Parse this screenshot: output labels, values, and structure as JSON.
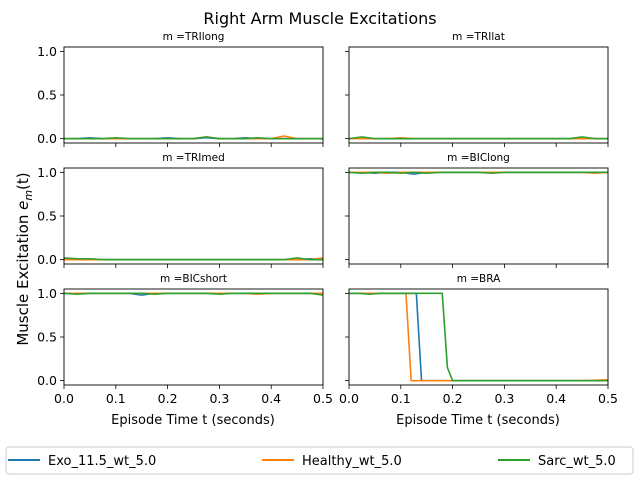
{
  "figure": {
    "title": "Right Arm Muscle Excitations",
    "ylabel_prefix": "Muscle Excitation ",
    "ylabel_math_e": "e",
    "ylabel_math_sub": "m",
    "ylabel_math_arg": "(t)",
    "xlabel": "Episode Time t (seconds)"
  },
  "legend": {
    "entries": [
      {
        "label": "Exo_11.5_wt_5.0",
        "color": "#1f77b4"
      },
      {
        "label": "Healthy_wt_5.0",
        "color": "#ff7f0e"
      },
      {
        "label": "Sarc_wt_5.0",
        "color": "#2ca02c"
      }
    ]
  },
  "chart_data": [
    {
      "type": "line",
      "title": "m =TRIlong",
      "x": [
        0.0,
        0.025,
        0.05,
        0.075,
        0.1,
        0.125,
        0.15,
        0.175,
        0.2,
        0.225,
        0.25,
        0.275,
        0.3,
        0.325,
        0.35,
        0.375,
        0.4,
        0.425,
        0.45,
        0.475,
        0.5
      ],
      "series": [
        {
          "name": "Exo_11.5_wt_5.0",
          "values": [
            0.0,
            0.0,
            0.01,
            0.0,
            0.0,
            0.0,
            0.0,
            0.0,
            0.01,
            0.0,
            0.0,
            0.01,
            0.0,
            0.0,
            0.01,
            0.0,
            0.0,
            0.0,
            0.0,
            0.0,
            0.0
          ]
        },
        {
          "name": "Healthy_wt_5.0",
          "values": [
            0.0,
            0.0,
            0.0,
            0.0,
            0.0,
            0.0,
            0.0,
            0.0,
            0.0,
            0.0,
            0.0,
            0.02,
            0.0,
            0.0,
            0.0,
            0.0,
            0.0,
            0.03,
            0.0,
            0.0,
            0.0
          ]
        },
        {
          "name": "Sarc_wt_5.0",
          "values": [
            0.0,
            0.0,
            0.0,
            0.0,
            0.01,
            0.0,
            0.0,
            0.0,
            0.0,
            0.0,
            0.0,
            0.02,
            0.0,
            0.0,
            0.0,
            0.01,
            0.0,
            0.0,
            0.0,
            0.0,
            0.0
          ]
        }
      ],
      "xlim": [
        0.0,
        0.5
      ],
      "ylim": [
        -0.05,
        1.05
      ],
      "xticks": [
        0.0,
        0.1,
        0.2,
        0.3,
        0.4,
        0.5
      ],
      "yticks": [
        0.0,
        0.5,
        1.0
      ]
    },
    {
      "type": "line",
      "title": "m =TRIlat",
      "x": [
        0.0,
        0.025,
        0.05,
        0.075,
        0.1,
        0.125,
        0.15,
        0.175,
        0.2,
        0.225,
        0.25,
        0.275,
        0.3,
        0.325,
        0.35,
        0.375,
        0.4,
        0.425,
        0.45,
        0.475,
        0.5
      ],
      "series": [
        {
          "name": "Exo_11.5_wt_5.0",
          "values": [
            0.0,
            0.0,
            0.0,
            0.0,
            0.0,
            0.0,
            0.0,
            0.0,
            0.0,
            0.0,
            0.0,
            0.0,
            0.0,
            0.0,
            0.0,
            0.0,
            0.0,
            0.0,
            0.0,
            0.0,
            0.0
          ]
        },
        {
          "name": "Healthy_wt_5.0",
          "values": [
            0.0,
            0.0,
            0.0,
            0.0,
            0.01,
            0.0,
            0.0,
            0.0,
            0.0,
            0.0,
            0.0,
            0.0,
            0.0,
            0.0,
            0.0,
            0.0,
            0.0,
            0.0,
            0.0,
            0.0,
            0.0
          ]
        },
        {
          "name": "Sarc_wt_5.0",
          "values": [
            0.0,
            0.02,
            0.0,
            0.0,
            0.0,
            0.0,
            0.0,
            0.0,
            0.0,
            0.0,
            0.0,
            0.0,
            0.0,
            0.0,
            0.0,
            0.0,
            0.0,
            0.0,
            0.02,
            0.0,
            0.0
          ]
        }
      ],
      "xlim": [
        0.0,
        0.5
      ],
      "ylim": [
        -0.05,
        1.05
      ],
      "xticks": [
        0.0,
        0.1,
        0.2,
        0.3,
        0.4,
        0.5
      ],
      "yticks": [
        0.0,
        0.5,
        1.0
      ]
    },
    {
      "type": "line",
      "title": "m =TRImed",
      "x": [
        0.0,
        0.025,
        0.05,
        0.075,
        0.1,
        0.125,
        0.15,
        0.175,
        0.2,
        0.225,
        0.25,
        0.275,
        0.3,
        0.325,
        0.35,
        0.375,
        0.4,
        0.425,
        0.45,
        0.475,
        0.5
      ],
      "series": [
        {
          "name": "Exo_11.5_wt_5.0",
          "values": [
            0.01,
            0.0,
            0.0,
            0.0,
            0.0,
            0.0,
            0.0,
            0.0,
            0.0,
            0.0,
            0.0,
            0.0,
            0.0,
            0.0,
            0.0,
            0.0,
            0.0,
            0.0,
            0.0,
            0.01,
            0.0
          ]
        },
        {
          "name": "Healthy_wt_5.0",
          "values": [
            0.0,
            0.0,
            0.0,
            0.0,
            0.0,
            0.0,
            0.0,
            0.0,
            0.0,
            0.0,
            0.0,
            0.0,
            0.0,
            0.0,
            0.0,
            0.0,
            0.0,
            0.0,
            0.0,
            0.0,
            0.02
          ]
        },
        {
          "name": "Sarc_wt_5.0",
          "values": [
            0.02,
            0.01,
            0.01,
            0.0,
            0.0,
            0.0,
            0.0,
            0.0,
            0.0,
            0.0,
            0.0,
            0.0,
            0.0,
            0.0,
            0.0,
            0.0,
            0.0,
            0.0,
            0.02,
            0.0,
            0.0
          ]
        }
      ],
      "xlim": [
        0.0,
        0.5
      ],
      "ylim": [
        -0.05,
        1.05
      ],
      "xticks": [
        0.0,
        0.1,
        0.2,
        0.3,
        0.4,
        0.5
      ],
      "yticks": [
        0.0,
        0.5,
        1.0
      ]
    },
    {
      "type": "line",
      "title": "m =BIClong",
      "x": [
        0.0,
        0.025,
        0.05,
        0.075,
        0.1,
        0.125,
        0.15,
        0.175,
        0.2,
        0.225,
        0.25,
        0.275,
        0.3,
        0.325,
        0.35,
        0.375,
        0.4,
        0.425,
        0.45,
        0.475,
        0.5
      ],
      "series": [
        {
          "name": "Exo_11.5_wt_5.0",
          "values": [
            1.0,
            1.0,
            0.99,
            1.0,
            1.0,
            0.98,
            1.0,
            1.0,
            1.0,
            1.0,
            1.0,
            1.0,
            1.0,
            1.0,
            1.0,
            1.0,
            1.0,
            1.0,
            1.0,
            1.0,
            1.0
          ]
        },
        {
          "name": "Healthy_wt_5.0",
          "values": [
            1.0,
            1.0,
            1.0,
            0.99,
            1.0,
            1.0,
            1.0,
            1.0,
            1.0,
            1.0,
            1.0,
            1.0,
            1.0,
            1.0,
            1.0,
            1.0,
            1.0,
            1.0,
            1.0,
            0.99,
            1.0
          ]
        },
        {
          "name": "Sarc_wt_5.0",
          "values": [
            1.0,
            0.99,
            1.0,
            1.0,
            0.99,
            1.0,
            0.99,
            1.0,
            1.0,
            1.0,
            1.0,
            0.99,
            1.0,
            1.0,
            1.0,
            1.0,
            1.0,
            1.0,
            1.0,
            1.0,
            1.0
          ]
        }
      ],
      "xlim": [
        0.0,
        0.5
      ],
      "ylim": [
        -0.05,
        1.05
      ],
      "xticks": [
        0.0,
        0.1,
        0.2,
        0.3,
        0.4,
        0.5
      ],
      "yticks": [
        0.0,
        0.5,
        1.0
      ]
    },
    {
      "type": "line",
      "title": "m =BICshort",
      "x": [
        0.0,
        0.025,
        0.05,
        0.075,
        0.1,
        0.125,
        0.15,
        0.175,
        0.2,
        0.225,
        0.25,
        0.275,
        0.3,
        0.325,
        0.35,
        0.375,
        0.4,
        0.425,
        0.45,
        0.475,
        0.5
      ],
      "series": [
        {
          "name": "Exo_11.5_wt_5.0",
          "values": [
            1.0,
            1.0,
            1.0,
            1.0,
            1.0,
            1.0,
            0.98,
            1.0,
            1.0,
            1.0,
            1.0,
            1.0,
            1.0,
            1.0,
            1.0,
            1.0,
            1.0,
            1.0,
            1.0,
            1.0,
            1.0
          ]
        },
        {
          "name": "Healthy_wt_5.0",
          "values": [
            1.0,
            1.0,
            1.0,
            1.0,
            1.0,
            1.0,
            1.0,
            1.0,
            1.0,
            1.0,
            1.0,
            1.0,
            1.0,
            1.0,
            1.0,
            0.99,
            1.0,
            1.0,
            1.0,
            1.0,
            1.0
          ]
        },
        {
          "name": "Sarc_wt_5.0",
          "values": [
            1.0,
            0.99,
            1.0,
            1.0,
            1.0,
            1.0,
            1.0,
            0.99,
            1.0,
            1.0,
            1.0,
            1.0,
            0.99,
            1.0,
            1.0,
            1.0,
            1.0,
            1.0,
            1.0,
            1.0,
            0.98
          ]
        }
      ],
      "xlim": [
        0.0,
        0.5
      ],
      "ylim": [
        -0.05,
        1.05
      ],
      "xticks": [
        0.0,
        0.1,
        0.2,
        0.3,
        0.4,
        0.5
      ],
      "yticks": [
        0.0,
        0.5,
        1.0
      ]
    },
    {
      "type": "line",
      "title": "m =BRA",
      "x": [
        0.0,
        0.02,
        0.04,
        0.06,
        0.08,
        0.1,
        0.11,
        0.12,
        0.13,
        0.14,
        0.16,
        0.17,
        0.18,
        0.19,
        0.2,
        0.25,
        0.3,
        0.35,
        0.4,
        0.45,
        0.5
      ],
      "series": [
        {
          "name": "Exo_11.5_wt_5.0",
          "values": [
            1.0,
            1.0,
            1.0,
            1.0,
            1.0,
            1.0,
            1.0,
            1.0,
            1.0,
            0.0,
            0.0,
            0.0,
            0.0,
            0.0,
            0.0,
            0.0,
            0.0,
            0.0,
            0.0,
            0.0,
            0.0
          ]
        },
        {
          "name": "Healthy_wt_5.0",
          "values": [
            1.0,
            1.0,
            1.0,
            1.0,
            1.0,
            1.0,
            1.0,
            0.0,
            0.0,
            0.0,
            0.0,
            0.0,
            0.0,
            0.0,
            0.0,
            0.0,
            0.0,
            0.0,
            0.0,
            0.0,
            0.01
          ]
        },
        {
          "name": "Sarc_wt_5.0",
          "values": [
            1.0,
            1.0,
            0.99,
            1.0,
            1.0,
            1.0,
            1.0,
            1.0,
            1.0,
            1.0,
            1.0,
            1.0,
            1.0,
            0.15,
            0.0,
            0.0,
            0.0,
            0.0,
            0.0,
            0.0,
            0.0
          ]
        }
      ],
      "xlim": [
        0.0,
        0.5
      ],
      "ylim": [
        -0.05,
        1.05
      ],
      "xticks": [
        0.0,
        0.1,
        0.2,
        0.3,
        0.4,
        0.5
      ],
      "yticks": [
        0.0,
        0.5,
        1.0
      ]
    }
  ]
}
